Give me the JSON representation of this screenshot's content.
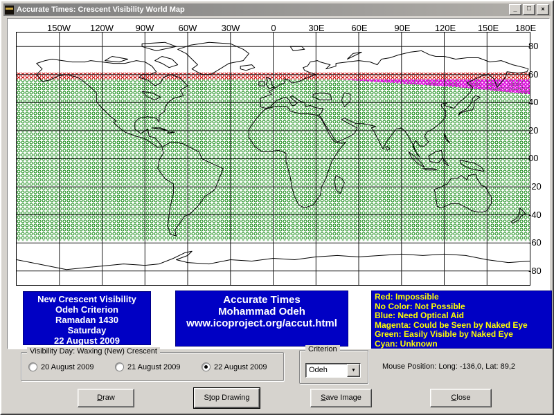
{
  "window": {
    "title": "Accurate Times: Crescent Visibility World Map",
    "minimize_glyph": "_",
    "maximize_glyph": "□",
    "close_glyph": "×"
  },
  "map": {
    "lon_labels": [
      "150W",
      "120W",
      "90W",
      "60W",
      "30W",
      "0",
      "30E",
      "60E",
      "90E",
      "120E",
      "150E",
      "180E"
    ],
    "lat_labels": [
      "80",
      "60",
      "40",
      "20",
      "00",
      "-20",
      "-40",
      "-60",
      "-80"
    ],
    "zone_colors": {
      "green": "#008000",
      "red": "#cc0000",
      "magenta": "#e800e8"
    }
  },
  "info_boxes": {
    "left": {
      "lines": [
        "New Crescent Visibility",
        "Odeh Criterion",
        "Ramadan 1430",
        "Saturday",
        "22 August 2009"
      ]
    },
    "center": {
      "lines": [
        "Accurate Times",
        "Mohammad Odeh",
        "www.icoproject.org/accut.html"
      ]
    },
    "legend": {
      "lines": [
        "Red: Impossible",
        "No Color: Not Possible",
        "Blue: Need Optical Aid",
        "Magenta: Could be Seen by Naked Eye",
        "Green: Easily Visible by Naked Eye",
        "Cyan: Unknown"
      ]
    }
  },
  "controls": {
    "visibility_group_label": "Visibility Day: Waxing (New) Crescent",
    "radios": [
      {
        "label": "20 August 2009",
        "selected": false
      },
      {
        "label": "21 August 2009",
        "selected": false
      },
      {
        "label": "22 August 2009",
        "selected": true
      }
    ],
    "criterion_group_label": "Criterion",
    "criterion_value": "Odeh",
    "mouse_position": "Mouse Position: Long: -136,0, Lat: 89,2",
    "buttons": [
      {
        "pre": "",
        "accel": "D",
        "post": "raw"
      },
      {
        "pre": "S",
        "accel": "t",
        "post": "op Drawing"
      },
      {
        "pre": "",
        "accel": "S",
        "post": "ave Image"
      },
      {
        "pre": "",
        "accel": "C",
        "post": "lose"
      }
    ]
  }
}
